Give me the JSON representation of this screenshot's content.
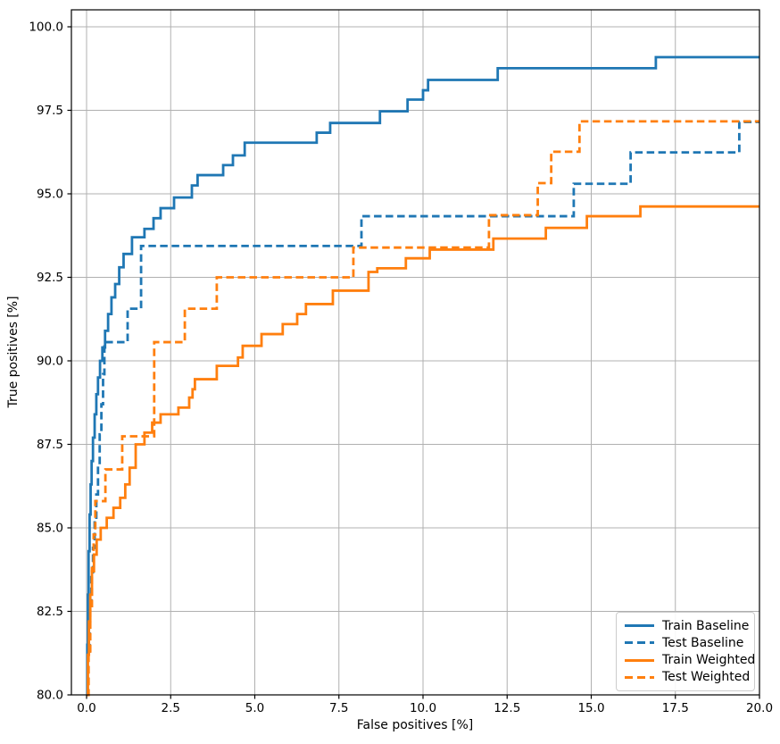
{
  "chart_data": {
    "type": "line",
    "title": "",
    "xlabel": "False positives [%]",
    "ylabel": "True positives [%]",
    "xlim": [
      -0.451,
      20.0
    ],
    "ylim": [
      80.0,
      100.508
    ],
    "x_ticks": [
      0.0,
      2.5,
      5.0,
      7.5,
      10.0,
      12.5,
      15.0,
      17.5,
      20.0
    ],
    "x_tick_labels": [
      "0.0",
      "2.5",
      "5.0",
      "7.5",
      "10.0",
      "12.5",
      "15.0",
      "17.5",
      "20.0"
    ],
    "y_ticks": [
      80.0,
      82.5,
      85.0,
      87.5,
      90.0,
      92.5,
      95.0,
      97.5,
      100.0
    ],
    "y_tick_labels": [
      "80.0",
      "82.5",
      "85.0",
      "87.5",
      "90.0",
      "92.5",
      "95.0",
      "97.5",
      "100.0"
    ],
    "grid": true,
    "grid_color": "#b0b0b0",
    "legend_position": "lower right",
    "step_mode": "after",
    "x_end": 20.0,
    "series": [
      {
        "name": "Train Baseline",
        "color": "#1f77b4",
        "dash": false,
        "points": [
          [
            0.0,
            80.0
          ],
          [
            0.02,
            81.5
          ],
          [
            0.04,
            83.0
          ],
          [
            0.06,
            84.3
          ],
          [
            0.09,
            85.4
          ],
          [
            0.12,
            86.3
          ],
          [
            0.15,
            87.0
          ],
          [
            0.19,
            87.7
          ],
          [
            0.24,
            88.4
          ],
          [
            0.29,
            89.0
          ],
          [
            0.34,
            89.5
          ],
          [
            0.4,
            90.0
          ],
          [
            0.47,
            90.4
          ],
          [
            0.55,
            90.9
          ],
          [
            0.64,
            91.4
          ],
          [
            0.74,
            91.9
          ],
          [
            0.85,
            92.3
          ],
          [
            0.97,
            92.8
          ],
          [
            1.1,
            93.2
          ],
          [
            1.35,
            93.7
          ],
          [
            1.72,
            93.95
          ],
          [
            1.99,
            94.27
          ],
          [
            2.2,
            94.57
          ],
          [
            2.6,
            94.89
          ],
          [
            3.13,
            95.25
          ],
          [
            3.3,
            95.56
          ],
          [
            4.06,
            95.86
          ],
          [
            4.35,
            96.15
          ],
          [
            4.7,
            96.53
          ],
          [
            6.84,
            96.83
          ],
          [
            7.24,
            97.12
          ],
          [
            8.72,
            97.47
          ],
          [
            9.54,
            97.82
          ],
          [
            10.0,
            98.1
          ],
          [
            10.15,
            98.41
          ],
          [
            12.22,
            98.76
          ],
          [
            16.92,
            99.09
          ]
        ]
      },
      {
        "name": "Test Baseline",
        "color": "#1f77b4",
        "dash": true,
        "points": [
          [
            0.0,
            80.0
          ],
          [
            0.05,
            81.3
          ],
          [
            0.09,
            82.6
          ],
          [
            0.14,
            83.6
          ],
          [
            0.19,
            84.4
          ],
          [
            0.24,
            85.2
          ],
          [
            0.29,
            86.0
          ],
          [
            0.34,
            86.9
          ],
          [
            0.39,
            87.8
          ],
          [
            0.44,
            88.7
          ],
          [
            0.49,
            89.6
          ],
          [
            0.53,
            90.56
          ],
          [
            1.22,
            91.56
          ],
          [
            1.62,
            93.44
          ],
          [
            8.17,
            94.33
          ],
          [
            14.48,
            95.3
          ],
          [
            16.17,
            96.24
          ],
          [
            19.4,
            97.15
          ]
        ]
      },
      {
        "name": "Train Weighted",
        "color": "#ff7f0e",
        "dash": false,
        "points": [
          [
            0.0,
            80.0
          ],
          [
            0.04,
            81.2
          ],
          [
            0.07,
            82.2
          ],
          [
            0.11,
            83.0
          ],
          [
            0.16,
            83.7
          ],
          [
            0.22,
            84.2
          ],
          [
            0.3,
            84.65
          ],
          [
            0.42,
            85.0
          ],
          [
            0.6,
            85.3
          ],
          [
            0.8,
            85.6
          ],
          [
            1.0,
            85.9
          ],
          [
            1.15,
            86.3
          ],
          [
            1.28,
            86.8
          ],
          [
            1.46,
            87.5
          ],
          [
            1.72,
            87.85
          ],
          [
            1.95,
            88.15
          ],
          [
            2.2,
            88.4
          ],
          [
            2.73,
            88.6
          ],
          [
            3.05,
            88.9
          ],
          [
            3.15,
            89.15
          ],
          [
            3.22,
            89.45
          ],
          [
            3.87,
            89.85
          ],
          [
            4.5,
            90.1
          ],
          [
            4.64,
            90.45
          ],
          [
            5.2,
            90.8
          ],
          [
            5.83,
            91.1
          ],
          [
            6.26,
            91.4
          ],
          [
            6.52,
            91.7
          ],
          [
            7.32,
            92.1
          ],
          [
            8.38,
            92.66
          ],
          [
            8.64,
            92.77
          ],
          [
            9.49,
            93.07
          ],
          [
            10.2,
            93.33
          ],
          [
            12.09,
            93.66
          ],
          [
            13.65,
            93.98
          ],
          [
            14.87,
            94.33
          ],
          [
            16.46,
            94.62
          ]
        ]
      },
      {
        "name": "Test Weighted",
        "color": "#ff7f0e",
        "dash": true,
        "points": [
          [
            0.0,
            80.0
          ],
          [
            0.06,
            81.3
          ],
          [
            0.11,
            82.6
          ],
          [
            0.16,
            83.8
          ],
          [
            0.21,
            84.8
          ],
          [
            0.26,
            85.8
          ],
          [
            0.56,
            86.75
          ],
          [
            1.06,
            87.74
          ],
          [
            2.01,
            90.56
          ],
          [
            2.92,
            91.56
          ],
          [
            3.87,
            92.5
          ],
          [
            7.93,
            93.39
          ],
          [
            11.96,
            94.36
          ],
          [
            13.41,
            95.32
          ],
          [
            13.81,
            96.26
          ],
          [
            14.65,
            97.17
          ]
        ]
      }
    ]
  },
  "legend": {
    "items": [
      "Train Baseline",
      "Test Baseline",
      "Train Weighted",
      "Test Weighted"
    ]
  }
}
